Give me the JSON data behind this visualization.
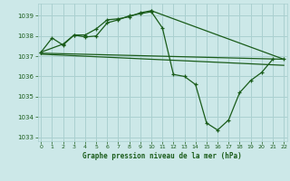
{
  "title": "Graphe pression niveau de la mer (hPa)",
  "bg_color": "#cce8e8",
  "grid_color": "#aad0d0",
  "line_color": "#1a5c1a",
  "series1_x": [
    0,
    1,
    2,
    3,
    4,
    5,
    6,
    7,
    8,
    9,
    10,
    11,
    12,
    13,
    14,
    15,
    16,
    17,
    18,
    19,
    20,
    21
  ],
  "series1_y": [
    1037.2,
    1037.9,
    1037.55,
    1038.05,
    1037.95,
    1038.0,
    1038.65,
    1038.8,
    1039.0,
    1039.1,
    1039.2,
    1038.4,
    1036.1,
    1036.0,
    1035.6,
    1033.7,
    1033.35,
    1033.85,
    1035.2,
    1035.8,
    1036.2,
    1036.85
  ],
  "series2_x": [
    0,
    2,
    3,
    4,
    5,
    6,
    7,
    8,
    9,
    10,
    22
  ],
  "series2_y": [
    1037.2,
    1037.6,
    1038.05,
    1038.05,
    1038.35,
    1038.8,
    1038.85,
    1038.95,
    1039.15,
    1039.25,
    1036.85
  ],
  "series3_x": [
    0,
    22
  ],
  "series3_y": [
    1037.15,
    1036.85
  ],
  "series4_x": [
    0,
    22
  ],
  "series4_y": [
    1037.1,
    1036.55
  ],
  "ylim": [
    1032.8,
    1039.6
  ],
  "xlim": [
    -0.3,
    22.3
  ],
  "yticks": [
    1033,
    1034,
    1035,
    1036,
    1037,
    1038,
    1039
  ],
  "xticks": [
    0,
    1,
    2,
    3,
    4,
    5,
    6,
    7,
    8,
    9,
    10,
    11,
    12,
    13,
    14,
    15,
    16,
    17,
    18,
    19,
    20,
    21,
    22
  ]
}
